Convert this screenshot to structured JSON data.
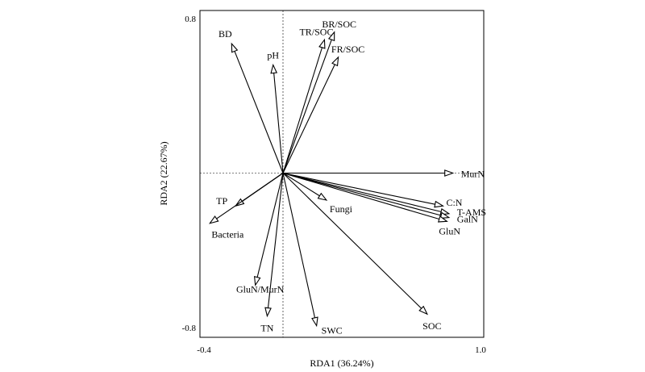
{
  "chart_data": {
    "type": "scatter",
    "subtype": "rda-biplot",
    "title": "",
    "xlabel": "RDA1 (36.24%)",
    "ylabel": "RDA2 (22.67%)",
    "xlim": [
      -0.4,
      1.0
    ],
    "ylim": [
      -0.8,
      0.8
    ],
    "x_ticks": [
      "-0.4",
      "1.0"
    ],
    "y_ticks": [
      "0.8",
      "-0.8"
    ],
    "zero_lines": true,
    "arrow_style": "open-triangle",
    "vectors": [
      {
        "label": "BD",
        "x": -0.26,
        "y": 0.67
      },
      {
        "label": "pH",
        "x": -0.05,
        "y": 0.56
      },
      {
        "label": "TR/SOC",
        "x": 0.21,
        "y": 0.69
      },
      {
        "label": "BR/SOC",
        "x": 0.26,
        "y": 0.73
      },
      {
        "label": "FR/SOC",
        "x": 0.28,
        "y": 0.6
      },
      {
        "label": "MurN",
        "x": 0.86,
        "y": 0.0
      },
      {
        "label": "C:N",
        "x": 0.81,
        "y": -0.17
      },
      {
        "label": "T-AMS",
        "x": 0.84,
        "y": -0.21
      },
      {
        "label": "GalN",
        "x": 0.84,
        "y": -0.23
      },
      {
        "label": "GluN",
        "x": 0.83,
        "y": -0.25
      },
      {
        "label": "Fungi",
        "x": 0.22,
        "y": -0.14
      },
      {
        "label": "TP",
        "x": -0.24,
        "y": -0.17
      },
      {
        "label": "Bacteria",
        "x": -0.37,
        "y": -0.26
      },
      {
        "label": "GluN/MurN",
        "x": -0.14,
        "y": -0.58
      },
      {
        "label": "TN",
        "x": -0.08,
        "y": -0.74
      },
      {
        "label": "SWC",
        "x": 0.17,
        "y": -0.79
      },
      {
        "label": "SOC",
        "x": 0.73,
        "y": -0.73
      }
    ]
  }
}
